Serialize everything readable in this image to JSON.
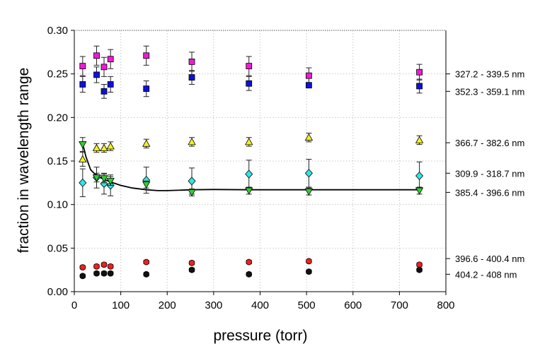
{
  "chart_data": {
    "type": "scatter",
    "xlabel": "pressure (torr)",
    "ylabel": "fraction in wavelength range",
    "xlim": [
      0,
      800
    ],
    "ylim": [
      0,
      0.3
    ],
    "xticks": [
      0,
      100,
      200,
      300,
      400,
      500,
      600,
      700,
      800
    ],
    "yticks": [
      0.0,
      0.05,
      0.1,
      0.15,
      0.2,
      0.25,
      0.3
    ],
    "xtick_labels": [
      "0",
      "100",
      "200",
      "300",
      "400",
      "500",
      "600",
      "700",
      "800"
    ],
    "ytick_labels": [
      "0.00",
      "0.05",
      "0.10",
      "0.15",
      "0.20",
      "0.25",
      "0.30"
    ],
    "grid": true,
    "x": [
      18,
      48,
      64,
      78,
      155,
      253,
      376,
      505,
      743
    ],
    "series": [
      {
        "name": "327.2 - 339.5 nm",
        "marker": "square",
        "color": "#ee1bd6",
        "values": [
          0.259,
          0.271,
          0.258,
          0.267,
          0.271,
          0.264,
          0.259,
          0.248,
          0.252
        ],
        "errors": [
          0.011,
          0.011,
          0.011,
          0.011,
          0.011,
          0.011,
          0.011,
          0.009,
          0.009
        ]
      },
      {
        "name": "352.3 - 359.1 nm",
        "marker": "square",
        "color": "#1010d8",
        "values": [
          0.238,
          0.249,
          0.23,
          0.238,
          0.233,
          0.246,
          0.239,
          0.237,
          0.236
        ],
        "errors": [
          0.009,
          0.009,
          0.008,
          0.009,
          0.009,
          0.008,
          0.008,
          0.003,
          0.008
        ]
      },
      {
        "name": "366.7 - 382.6 nm",
        "marker": "triangle-up",
        "color": "#f2f21a",
        "values": [
          0.152,
          0.165,
          0.165,
          0.167,
          0.17,
          0.172,
          0.172,
          0.177,
          0.174
        ],
        "errors": [
          0.008,
          0.005,
          0.005,
          0.005,
          0.005,
          0.005,
          0.005,
          0.005,
          0.005
        ]
      },
      {
        "name": "309.9 - 318.7 nm",
        "marker": "diamond",
        "color": "#2ee6e6",
        "values": [
          0.125,
          0.131,
          0.124,
          0.122,
          0.128,
          0.127,
          0.135,
          0.136,
          0.133
        ],
        "errors": [
          0.016,
          0.012,
          0.012,
          0.012,
          0.015,
          0.015,
          0.016,
          0.016,
          0.016
        ]
      },
      {
        "name": "385.4 - 396.6 nm",
        "marker": "triangle-down",
        "color": "#33cc33",
        "values": [
          0.169,
          0.131,
          0.13,
          0.127,
          0.123,
          0.114,
          0.116,
          0.115,
          0.116
        ],
        "errors": [
          0.008,
          0.005,
          0.005,
          0.005,
          0.004,
          0.004,
          0.004,
          0.004,
          0.004
        ]
      },
      {
        "name": "396.6 - 400.4 nm",
        "marker": "circle",
        "color": "#ee2020",
        "values": [
          0.028,
          0.029,
          0.031,
          0.029,
          0.034,
          0.033,
          0.034,
          0.035,
          0.031
        ],
        "errors": [
          0.002,
          0.002,
          0.002,
          0.002,
          0.002,
          0.002,
          0.002,
          0.002,
          0.002
        ]
      },
      {
        "name": "404.2 - 408 nm",
        "marker": "circle",
        "color": "#111111",
        "values": [
          0.018,
          0.021,
          0.021,
          0.021,
          0.02,
          0.025,
          0.02,
          0.023,
          0.025
        ],
        "errors": [
          0.002,
          0.002,
          0.002,
          0.002,
          0.002,
          0.002,
          0.002,
          0.002,
          0.002
        ]
      }
    ],
    "fit_curve": {
      "x": [
        18,
        25,
        35,
        48,
        64,
        78,
        100,
        125,
        155,
        180,
        200,
        253,
        300,
        376,
        505,
        743
      ],
      "y": [
        0.17,
        0.155,
        0.14,
        0.133,
        0.129,
        0.126,
        0.122,
        0.119,
        0.117,
        0.116,
        0.116,
        0.117,
        0.1173,
        0.117,
        0.117,
        0.117
      ]
    },
    "right_labels": [
      {
        "text": "327.2 - 339.5 nm",
        "y": 0.25
      },
      {
        "text": "352.3 - 359.1 nm",
        "y": 0.23
      },
      {
        "text": "366.7 - 382.6 nm",
        "y": 0.171
      },
      {
        "text": "309.9 - 318.7 nm",
        "y": 0.136
      },
      {
        "text": "385.4 - 396.6 nm",
        "y": 0.114
      },
      {
        "text": "396.6 - 400.4 nm",
        "y": 0.038
      },
      {
        "text": "404.2 - 408 nm",
        "y": 0.02
      }
    ]
  }
}
